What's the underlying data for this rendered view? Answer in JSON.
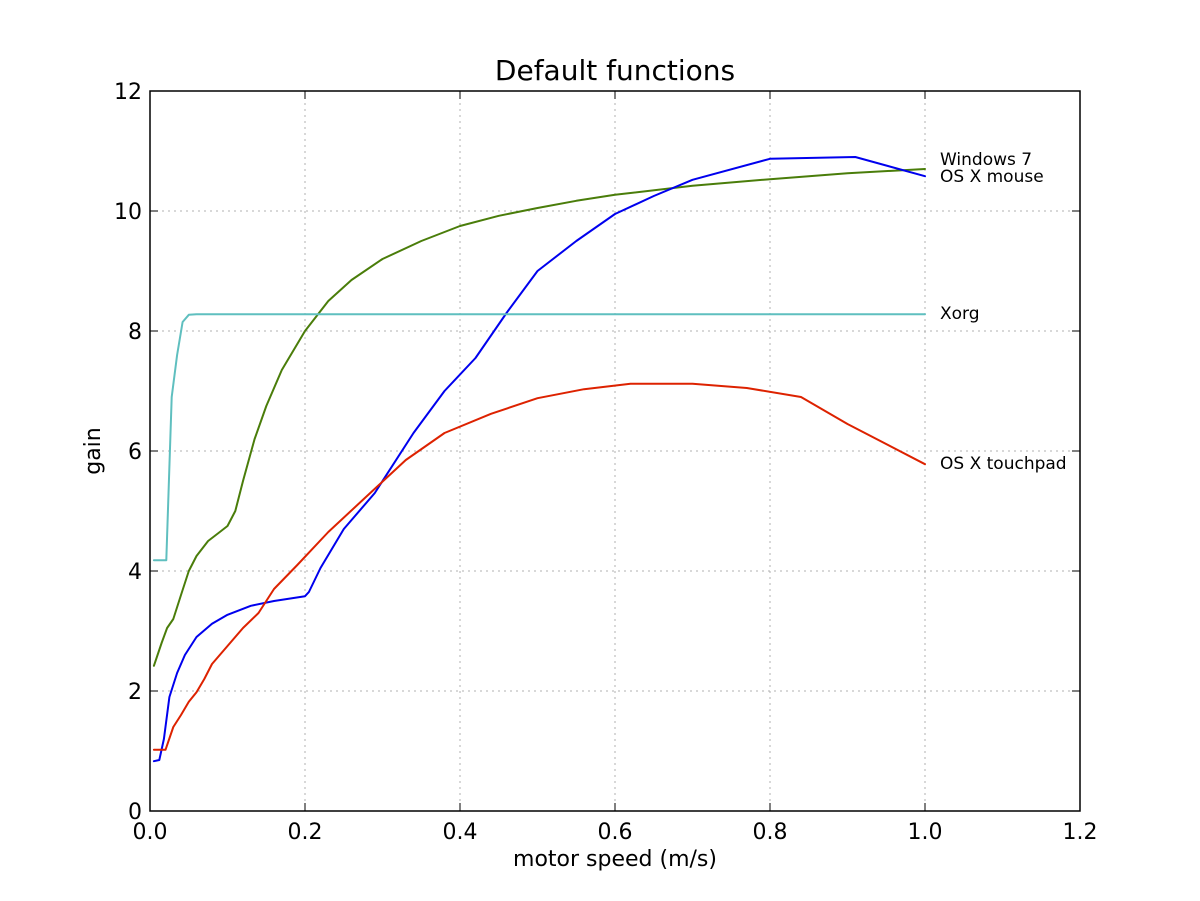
{
  "chart_data": {
    "type": "line",
    "title": "Default functions",
    "xlabel": "motor speed (m/s)",
    "ylabel": "gain",
    "xlim": [
      0,
      1.2
    ],
    "ylim": [
      0,
      12
    ],
    "xticks": [
      "0.0",
      "0.2",
      "0.4",
      "0.6",
      "0.8",
      "1.0",
      "1.2"
    ],
    "yticks": [
      "0",
      "2",
      "4",
      "6",
      "8",
      "10",
      "12"
    ],
    "grid": true,
    "legend": "inline labels at line ends",
    "series": [
      {
        "name": "Windows 7",
        "color": "#4a7d0a",
        "x": [
          0.005,
          0.015,
          0.022,
          0.03,
          0.04,
          0.05,
          0.06,
          0.075,
          0.09,
          0.1,
          0.11,
          0.12,
          0.135,
          0.15,
          0.17,
          0.2,
          0.23,
          0.26,
          0.3,
          0.35,
          0.4,
          0.45,
          0.5,
          0.55,
          0.6,
          0.7,
          0.8,
          0.9,
          1.0
        ],
        "y": [
          2.42,
          2.8,
          3.05,
          3.2,
          3.6,
          4.0,
          4.25,
          4.5,
          4.65,
          4.75,
          5.0,
          5.5,
          6.2,
          6.75,
          7.35,
          8.0,
          8.5,
          8.85,
          9.2,
          9.5,
          9.75,
          9.92,
          10.05,
          10.17,
          10.27,
          10.42,
          10.53,
          10.63,
          10.7
        ]
      },
      {
        "name": "OS X mouse",
        "color": "#0000ee",
        "x": [
          0.005,
          0.012,
          0.018,
          0.025,
          0.035,
          0.045,
          0.06,
          0.08,
          0.1,
          0.13,
          0.16,
          0.2,
          0.205,
          0.22,
          0.25,
          0.29,
          0.34,
          0.38,
          0.42,
          0.46,
          0.5,
          0.55,
          0.6,
          0.65,
          0.7,
          0.8,
          0.91,
          1.0
        ],
        "y": [
          0.83,
          0.85,
          1.2,
          1.9,
          2.3,
          2.6,
          2.9,
          3.12,
          3.27,
          3.42,
          3.5,
          3.58,
          3.65,
          4.05,
          4.7,
          5.3,
          6.3,
          7.0,
          7.55,
          8.3,
          9.0,
          9.5,
          9.95,
          10.25,
          10.52,
          10.87,
          10.9,
          10.58
        ]
      },
      {
        "name": "Xorg",
        "color": "#5fbfbf",
        "x": [
          0.005,
          0.02,
          0.021,
          0.028,
          0.035,
          0.042,
          0.05,
          0.06,
          0.09,
          0.2,
          0.4,
          0.6,
          0.8,
          1.0
        ],
        "y": [
          4.18,
          4.18,
          4.18,
          6.9,
          7.6,
          8.15,
          8.27,
          8.28,
          8.28,
          8.28,
          8.28,
          8.28,
          8.28,
          8.28
        ]
      },
      {
        "name": "OS X touchpad",
        "color": "#dd2200",
        "x": [
          0.005,
          0.02,
          0.03,
          0.04,
          0.05,
          0.06,
          0.07,
          0.08,
          0.1,
          0.12,
          0.14,
          0.16,
          0.19,
          0.23,
          0.28,
          0.33,
          0.38,
          0.44,
          0.5,
          0.56,
          0.62,
          0.7,
          0.77,
          0.84,
          0.9,
          1.0
        ],
        "y": [
          1.02,
          1.02,
          1.4,
          1.6,
          1.82,
          1.98,
          2.2,
          2.45,
          2.75,
          3.05,
          3.3,
          3.7,
          4.1,
          4.65,
          5.25,
          5.85,
          6.3,
          6.62,
          6.88,
          7.03,
          7.12,
          7.12,
          7.05,
          6.9,
          6.45,
          5.78
        ]
      }
    ]
  }
}
